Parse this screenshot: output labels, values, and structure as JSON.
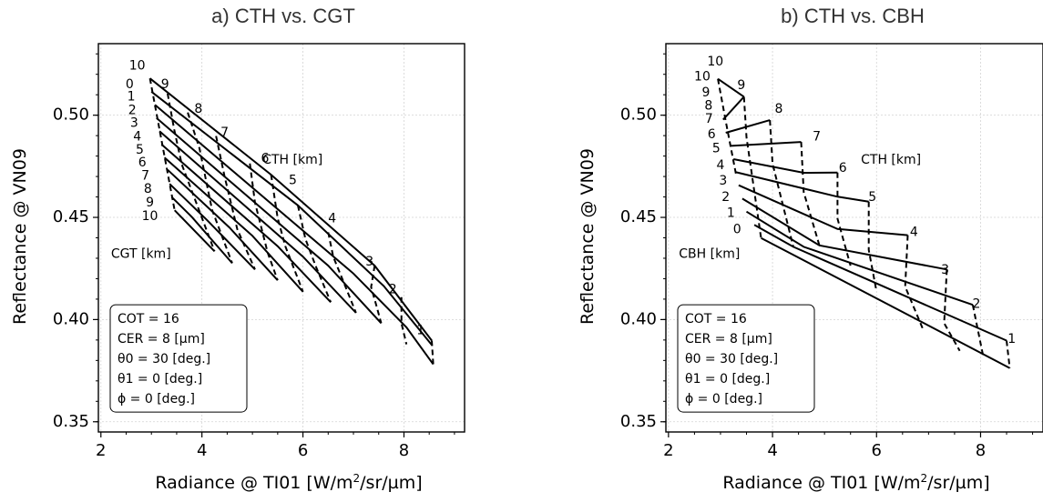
{
  "chart_data": [
    {
      "type": "line",
      "title": "a) CTH vs. CGT",
      "xlabel": "Radiance @ TI01 [W/m2/sr/µm]",
      "ylabel": "Reflectance @ VN09",
      "xlim": [
        1.95,
        9.2
      ],
      "ylim": [
        0.345,
        0.535
      ],
      "xticks": [
        2,
        4,
        6,
        8
      ],
      "yticks": [
        0.35,
        0.4,
        0.45,
        0.5
      ],
      "grid": true,
      "solid_family_name": "CGT [km]",
      "dashed_family_name": "CTH [km]",
      "solid_lines": [
        {
          "label": "0",
          "x": [
            2.97,
            5.37,
            7.42,
            8.55
          ],
          "y": [
            0.518,
            0.4709,
            0.4264,
            0.3897
          ]
        },
        {
          "label": "1",
          "x": [
            3.0,
            5.9,
            7.6,
            8.56
          ],
          "y": [
            0.5115,
            0.4559,
            0.4164,
            0.3873
          ]
        },
        {
          "label": "2",
          "x": [
            3.07,
            7.0,
            8.05,
            8.58
          ],
          "y": [
            0.5051,
            0.4225,
            0.3962,
            0.3781
          ]
        },
        {
          "label": "3",
          "x": [
            3.1,
            6.5,
            7.55
          ],
          "y": [
            0.4986,
            0.4264,
            0.3982
          ]
        },
        {
          "label": "4",
          "x": [
            3.16,
            6.0,
            7.05
          ],
          "y": [
            0.4922,
            0.4308,
            0.4033
          ]
        },
        {
          "label": "5",
          "x": [
            3.2,
            5.5,
            6.55
          ],
          "y": [
            0.4857,
            0.4359,
            0.4085
          ]
        },
        {
          "label": "6",
          "x": [
            3.26,
            5.0,
            6.0
          ],
          "y": [
            0.4793,
            0.441,
            0.4136
          ]
        },
        {
          "label": "7",
          "x": [
            3.32,
            4.55,
            5.5
          ],
          "y": [
            0.4733,
            0.4449,
            0.4192
          ]
        },
        {
          "label": "8",
          "x": [
            3.36,
            4.1,
            5.05
          ],
          "y": [
            0.4664,
            0.4487,
            0.4245
          ]
        },
        {
          "label": "9",
          "x": [
            3.4,
            3.8,
            4.6
          ],
          "y": [
            0.46,
            0.4502,
            0.4276
          ]
        },
        {
          "label": "10",
          "x": [
            3.46,
            4.25
          ],
          "y": [
            0.4535,
            0.4334
          ]
        }
      ],
      "dashed_lines": [
        {
          "label": "10",
          "x": [
            2.97,
            3.46
          ],
          "y": [
            0.518,
            0.4535
          ]
        },
        {
          "label": "9",
          "x": [
            3.32,
            3.45,
            3.6,
            4.25
          ],
          "y": [
            0.5106,
            0.4931,
            0.476,
            0.4334
          ]
        },
        {
          "label": "8",
          "x": [
            3.72,
            3.95,
            4.2,
            4.6
          ],
          "y": [
            0.5013,
            0.4839,
            0.4537,
            0.4276
          ]
        },
        {
          "label": "7",
          "x": [
            4.28,
            4.45,
            4.7,
            5.05
          ],
          "y": [
            0.4898,
            0.4699,
            0.4442,
            0.4245
          ]
        },
        {
          "label": "6",
          "x": [
            4.95,
            5.05,
            5.3,
            5.5
          ],
          "y": [
            0.4764,
            0.4573,
            0.4328,
            0.4192
          ]
        },
        {
          "label": "5",
          "x": [
            5.37,
            5.5,
            5.65,
            6.0
          ],
          "y": [
            0.4709,
            0.4497,
            0.4359,
            0.4136
          ]
        },
        {
          "label": "4",
          "x": [
            5.9,
            6.05,
            6.25,
            6.55
          ],
          "y": [
            0.4559,
            0.4394,
            0.4264,
            0.4085
          ]
        },
        {
          "label": "3",
          "x": [
            6.5,
            6.6,
            6.8,
            7.05
          ],
          "y": [
            0.4427,
            0.4308,
            0.4187,
            0.4033
          ]
        },
        {
          "label": "2",
          "x": [
            7.42,
            7.35,
            7.45,
            7.55
          ],
          "y": [
            0.4264,
            0.4159,
            0.4071,
            0.3982
          ]
        },
        {
          "label": "1",
          "x": [
            7.95,
            7.95,
            8.05
          ],
          "y": [
            0.411,
            0.3982,
            0.3879
          ]
        },
        {
          "label": "0",
          "x": [
            8.55,
            8.58
          ],
          "y": [
            0.3897,
            0.3781
          ]
        }
      ],
      "annotations": [
        {
          "text": "CTH [km]",
          "x": 5.2,
          "y": 0.478
        },
        {
          "text": "CGT [km]",
          "x": 2.2,
          "y": 0.432
        }
      ],
      "point_labels": [
        {
          "text": "10",
          "x": 2.72,
          "y": 0.524
        },
        {
          "text": "0",
          "x": 2.57,
          "y": 0.515
        },
        {
          "text": "1",
          "x": 2.6,
          "y": 0.5089
        },
        {
          "text": "2",
          "x": 2.62,
          "y": 0.5024
        },
        {
          "text": "3",
          "x": 2.66,
          "y": 0.496
        },
        {
          "text": "4",
          "x": 2.72,
          "y": 0.4895
        },
        {
          "text": "5",
          "x": 2.77,
          "y": 0.483
        },
        {
          "text": "6",
          "x": 2.82,
          "y": 0.4766
        },
        {
          "text": "7",
          "x": 2.88,
          "y": 0.4702
        },
        {
          "text": "8",
          "x": 2.93,
          "y": 0.4637
        },
        {
          "text": "9",
          "x": 2.97,
          "y": 0.4572
        },
        {
          "text": "10",
          "x": 2.97,
          "y": 0.4505
        },
        {
          "text": "9",
          "x": 3.27,
          "y": 0.515
        },
        {
          "text": "8",
          "x": 3.93,
          "y": 0.5029
        },
        {
          "text": "7",
          "x": 4.45,
          "y": 0.4914
        },
        {
          "text": "6",
          "x": 5.25,
          "y": 0.4787
        },
        {
          "text": "5",
          "x": 5.8,
          "y": 0.468
        },
        {
          "text": "4",
          "x": 6.58,
          "y": 0.4493
        },
        {
          "text": "3",
          "x": 7.32,
          "y": 0.4283
        },
        {
          "text": "2",
          "x": 7.78,
          "y": 0.4146
        },
        {
          "text": "1",
          "x": 8.33,
          "y": 0.3946
        }
      ],
      "notes": [
        "COT = 16",
        "CER =   8 [µm]",
        "θ0 = 30 [deg.]",
        "θ1 =   0 [deg.]",
        "ϕ   =   0 [deg.]"
      ]
    },
    {
      "type": "line",
      "title": "b) CTH vs. CBH",
      "xlabel": "Radiance @ TI01 [W/m2/sr/µm]",
      "ylabel": "Reflectance @ VN09",
      "xlim": [
        1.95,
        9.2
      ],
      "ylim": [
        0.345,
        0.535
      ],
      "xticks": [
        2,
        4,
        6,
        8
      ],
      "yticks": [
        0.35,
        0.4,
        0.45,
        0.5
      ],
      "grid": true,
      "solid_family_name": "CTH [km]",
      "dashed_family_name": "CBH [km]",
      "solid_lines": [
        {
          "label": "0",
          "x": [
            3.78,
            8.56
          ],
          "y": [
            0.4399,
            0.3763
          ]
        },
        {
          "label": "1",
          "x": [
            3.65,
            4.4,
            8.5
          ],
          "y": [
            0.4463,
            0.4356,
            0.3897
          ]
        },
        {
          "label": "2",
          "x": [
            3.5,
            4.6,
            7.85
          ],
          "y": [
            0.4528,
            0.4356,
            0.4072
          ]
        },
        {
          "label": "3",
          "x": [
            3.42,
            4.9,
            7.35
          ],
          "y": [
            0.4592,
            0.4363,
            0.4245
          ]
        },
        {
          "label": "4",
          "x": [
            3.35,
            5.25,
            6.6
          ],
          "y": [
            0.4657,
            0.4443,
            0.4413
          ]
        },
        {
          "label": "5",
          "x": [
            3.3,
            5.25,
            5.85
          ],
          "y": [
            0.4721,
            0.4601,
            0.4577
          ]
        },
        {
          "label": "6",
          "x": [
            3.25,
            4.6,
            5.25
          ],
          "y": [
            0.4785,
            0.4718,
            0.4719
          ]
        },
        {
          "label": "7",
          "x": [
            3.2,
            4.55
          ],
          "y": [
            0.485,
            0.4869
          ]
        },
        {
          "label": "8",
          "x": [
            3.1,
            3.95
          ],
          "y": [
            0.4914,
            0.4976
          ]
        },
        {
          "label": "9",
          "x": [
            3.05,
            3.45
          ],
          "y": [
            0.4978,
            0.509
          ]
        },
        {
          "label": "10",
          "x": [
            2.95,
            3.45
          ],
          "y": [
            0.5178,
            0.509
          ]
        }
      ],
      "dashed_lines": [
        {
          "label": "10",
          "x": [
            2.95,
            3.1,
            3.3
          ],
          "y": [
            0.5178,
            0.4971,
            0.4708
          ]
        },
        {
          "label": "9",
          "x": [
            3.45,
            3.5,
            3.78
          ],
          "y": [
            0.509,
            0.4892,
            0.4399
          ]
        },
        {
          "label": "8",
          "x": [
            3.95,
            4.0,
            4.4
          ],
          "y": [
            0.4976,
            0.4763,
            0.4356
          ]
        },
        {
          "label": "7",
          "x": [
            4.55,
            4.6,
            4.9
          ],
          "y": [
            0.4869,
            0.4624,
            0.4363
          ]
        },
        {
          "label": "6",
          "x": [
            5.25,
            5.25,
            5.5
          ],
          "y": [
            0.4719,
            0.4494,
            0.4264
          ]
        },
        {
          "label": "5",
          "x": [
            5.85,
            5.85,
            6.0
          ],
          "y": [
            0.4577,
            0.4341,
            0.4136
          ]
        },
        {
          "label": "4",
          "x": [
            6.6,
            6.55,
            6.9
          ],
          "y": [
            0.4413,
            0.4161,
            0.3948
          ]
        },
        {
          "label": "3",
          "x": [
            7.35,
            7.3,
            7.6
          ],
          "y": [
            0.4245,
            0.3982,
            0.3847
          ]
        },
        {
          "label": "2",
          "x": [
            7.85,
            8.05
          ],
          "y": [
            0.4072,
            0.3822
          ]
        },
        {
          "label": "1",
          "x": [
            8.5,
            8.56
          ],
          "y": [
            0.3897,
            0.3763
          ]
        }
      ],
      "annotations": [
        {
          "text": "CTH [km]",
          "x": 5.7,
          "y": 0.478
        },
        {
          "text": "CBH [km]",
          "x": 2.2,
          "y": 0.432
        }
      ],
      "point_labels": [
        {
          "text": "10",
          "x": 2.9,
          "y": 0.526
        },
        {
          "text": "10",
          "x": 2.65,
          "y": 0.5188
        },
        {
          "text": "9",
          "x": 3.4,
          "y": 0.5145
        },
        {
          "text": "8",
          "x": 4.12,
          "y": 0.5029
        },
        {
          "text": "7",
          "x": 4.85,
          "y": 0.4894
        },
        {
          "text": "6",
          "x": 5.35,
          "y": 0.4741
        },
        {
          "text": "5",
          "x": 5.92,
          "y": 0.4597
        },
        {
          "text": "4",
          "x": 6.72,
          "y": 0.4426
        },
        {
          "text": "3",
          "x": 7.32,
          "y": 0.4243
        },
        {
          "text": "2",
          "x": 7.92,
          "y": 0.4075
        },
        {
          "text": "1",
          "x": 8.6,
          "y": 0.3903
        },
        {
          "text": "9",
          "x": 2.72,
          "y": 0.511
        },
        {
          "text": "8",
          "x": 2.77,
          "y": 0.5046
        },
        {
          "text": "7",
          "x": 2.78,
          "y": 0.4981
        },
        {
          "text": "6",
          "x": 2.83,
          "y": 0.4904
        },
        {
          "text": "5",
          "x": 2.92,
          "y": 0.4835
        },
        {
          "text": "4",
          "x": 3.0,
          "y": 0.4754
        },
        {
          "text": "3",
          "x": 3.05,
          "y": 0.4677
        },
        {
          "text": "2",
          "x": 3.1,
          "y": 0.4599
        },
        {
          "text": "1",
          "x": 3.2,
          "y": 0.452
        },
        {
          "text": "0",
          "x": 3.32,
          "y": 0.4441
        }
      ],
      "notes": [
        "COT = 16",
        "CER =   8 [µm]",
        "θ0 = 30 [deg.]",
        "θ1 =   0 [deg.]",
        "ϕ   =   0 [deg.]"
      ]
    }
  ]
}
